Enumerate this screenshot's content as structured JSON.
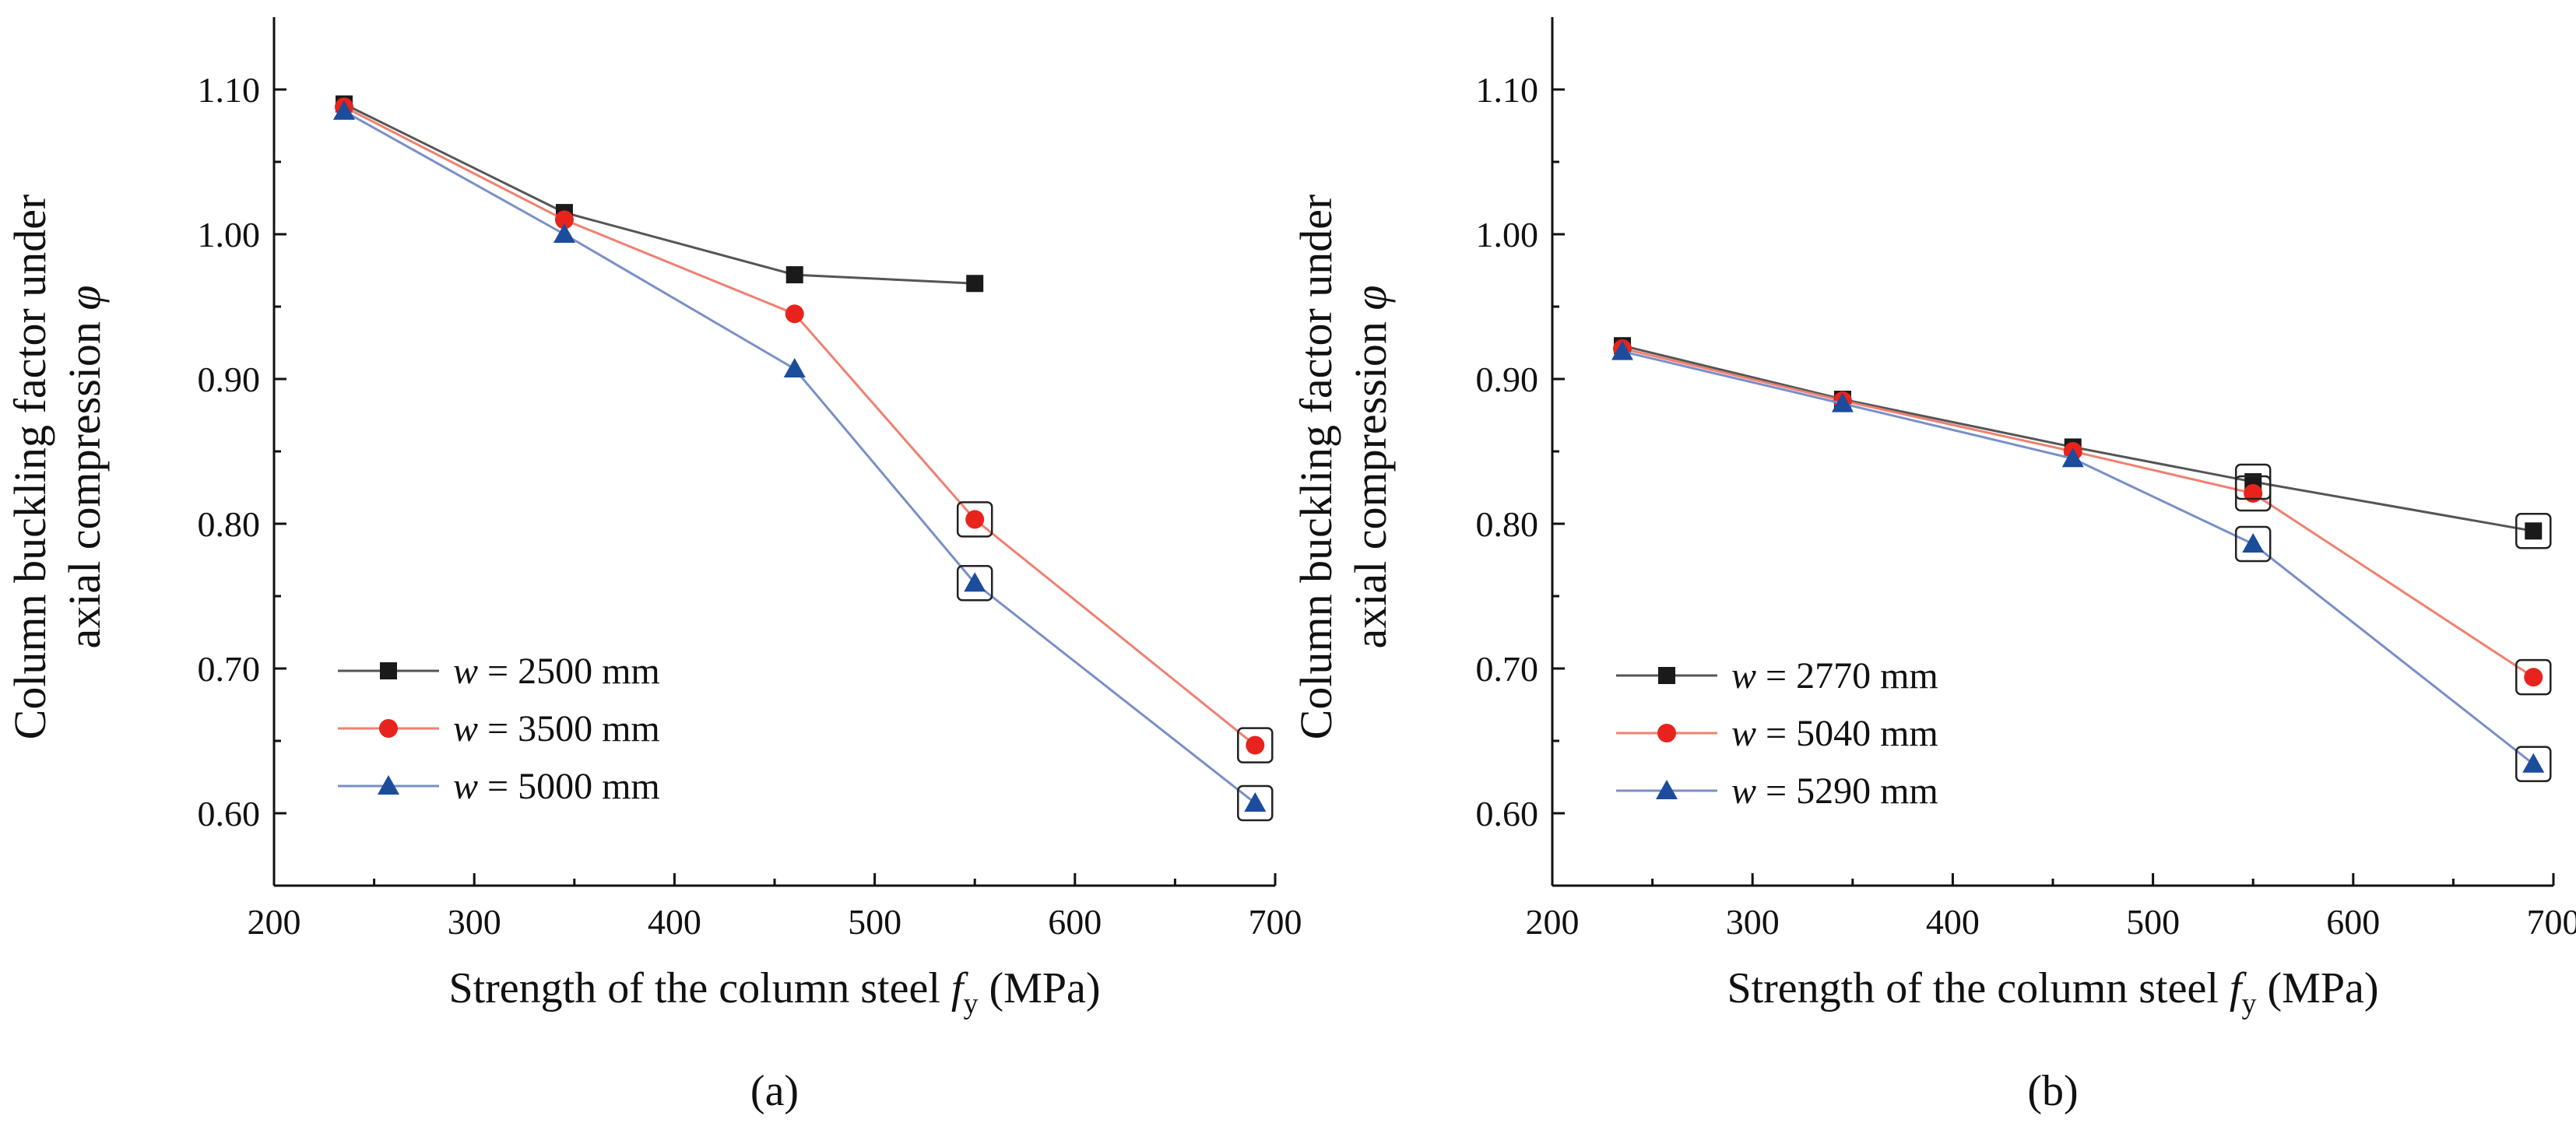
{
  "chart_data": [
    {
      "type": "line",
      "panel_label": "(a)",
      "ylabel_line1": "Column buckling factor under",
      "ylabel_line2": "axial compression",
      "ylabel_symbol": "φ",
      "xlabel_main": "Strength of the column steel",
      "xlabel_symbol": "f",
      "xlabel_sub": "y",
      "xlabel_unit": "(MPa)",
      "xlim": [
        200,
        700
      ],
      "ylim": [
        0.55,
        1.15
      ],
      "xticks": [
        200,
        300,
        400,
        500,
        600,
        700
      ],
      "yticks": [
        0.6,
        0.7,
        0.8,
        0.9,
        1.0,
        1.1
      ],
      "legend_position": "bottom-left",
      "x": [
        235,
        345,
        460,
        550,
        690
      ],
      "series": [
        {
          "name": "w = 2500 mm",
          "symbol": "w",
          "label": "= 2500 mm",
          "color": "#1a1a1a",
          "line_color": "#555555",
          "marker": "square",
          "values": [
            1.09,
            1.015,
            0.972,
            0.966,
            null
          ],
          "boxed": [
            false,
            false,
            false,
            false,
            false
          ]
        },
        {
          "name": "w = 3500 mm",
          "symbol": "w",
          "label": "= 3500 mm",
          "color": "#e8231d",
          "line_color": "#f08070",
          "marker": "circle",
          "values": [
            1.088,
            1.01,
            0.945,
            0.803,
            0.647
          ],
          "boxed": [
            false,
            false,
            false,
            true,
            true
          ]
        },
        {
          "name": "w = 5000 mm",
          "symbol": "w",
          "label": "= 5000 mm",
          "color": "#1c4c9c",
          "line_color": "#7a8fc8",
          "marker": "triangle",
          "values": [
            1.085,
            1.0,
            0.907,
            0.759,
            0.607
          ],
          "boxed": [
            false,
            false,
            false,
            true,
            true
          ]
        }
      ]
    },
    {
      "type": "line",
      "panel_label": "(b)",
      "ylabel_line1": "Column buckling factor under",
      "ylabel_line2": "axial compression",
      "ylabel_symbol": "φ",
      "xlabel_main": "Strength of the column steel",
      "xlabel_symbol": "f",
      "xlabel_sub": "y",
      "xlabel_unit": "(MPa)",
      "xlim": [
        200,
        700
      ],
      "ylim": [
        0.55,
        1.15
      ],
      "xticks": [
        200,
        300,
        400,
        500,
        600,
        700
      ],
      "yticks": [
        0.6,
        0.7,
        0.8,
        0.9,
        1.0,
        1.1
      ],
      "legend_position": "bottom-left",
      "x": [
        235,
        345,
        460,
        550,
        690
      ],
      "series": [
        {
          "name": "w = 2770 mm",
          "symbol": "w",
          "label": "= 2770 mm",
          "color": "#1a1a1a",
          "line_color": "#555555",
          "marker": "square",
          "values": [
            0.923,
            0.886,
            0.853,
            0.829,
            0.795
          ],
          "boxed": [
            false,
            false,
            false,
            true,
            true
          ]
        },
        {
          "name": "w = 5040 mm",
          "symbol": "w",
          "label": "= 5040 mm",
          "color": "#e8231d",
          "line_color": "#f08070",
          "marker": "circle",
          "values": [
            0.921,
            0.885,
            0.85,
            0.821,
            0.694
          ],
          "boxed": [
            false,
            false,
            false,
            true,
            true
          ]
        },
        {
          "name": "w = 5290 mm",
          "symbol": "w",
          "label": "= 5290 mm",
          "color": "#1c4c9c",
          "line_color": "#7a8fc8",
          "marker": "triangle",
          "values": [
            0.919,
            0.883,
            0.845,
            0.786,
            0.634
          ],
          "boxed": [
            false,
            false,
            false,
            true,
            true
          ]
        }
      ]
    }
  ]
}
